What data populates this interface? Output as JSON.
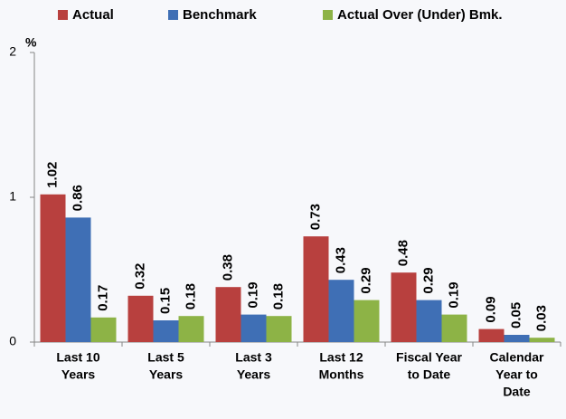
{
  "chart_data": {
    "type": "bar",
    "y_label": "%",
    "categories": [
      [
        "Last 10",
        "Years"
      ],
      [
        "Last 5",
        "Years"
      ],
      [
        "Last 3",
        "Years"
      ],
      [
        "Last 12",
        "Months"
      ],
      [
        "Fiscal Year",
        "to Date"
      ],
      [
        "Calendar",
        "Year to",
        "Date"
      ]
    ],
    "series": [
      {
        "name": "Actual",
        "color": "#b8403e",
        "values": [
          1.02,
          0.32,
          0.38,
          0.73,
          0.48,
          0.09
        ]
      },
      {
        "name": "Benchmark",
        "color": "#3f6fb5",
        "values": [
          0.86,
          0.15,
          0.19,
          0.43,
          0.29,
          0.05
        ]
      },
      {
        "name": "Actual Over (Under) Bmk.",
        "color": "#8db346",
        "values": [
          0.17,
          0.18,
          0.18,
          0.29,
          0.19,
          0.03
        ]
      }
    ],
    "ylim": [
      0,
      2
    ],
    "yticks": [
      0,
      1,
      2
    ],
    "grid": false,
    "legend": "top"
  }
}
